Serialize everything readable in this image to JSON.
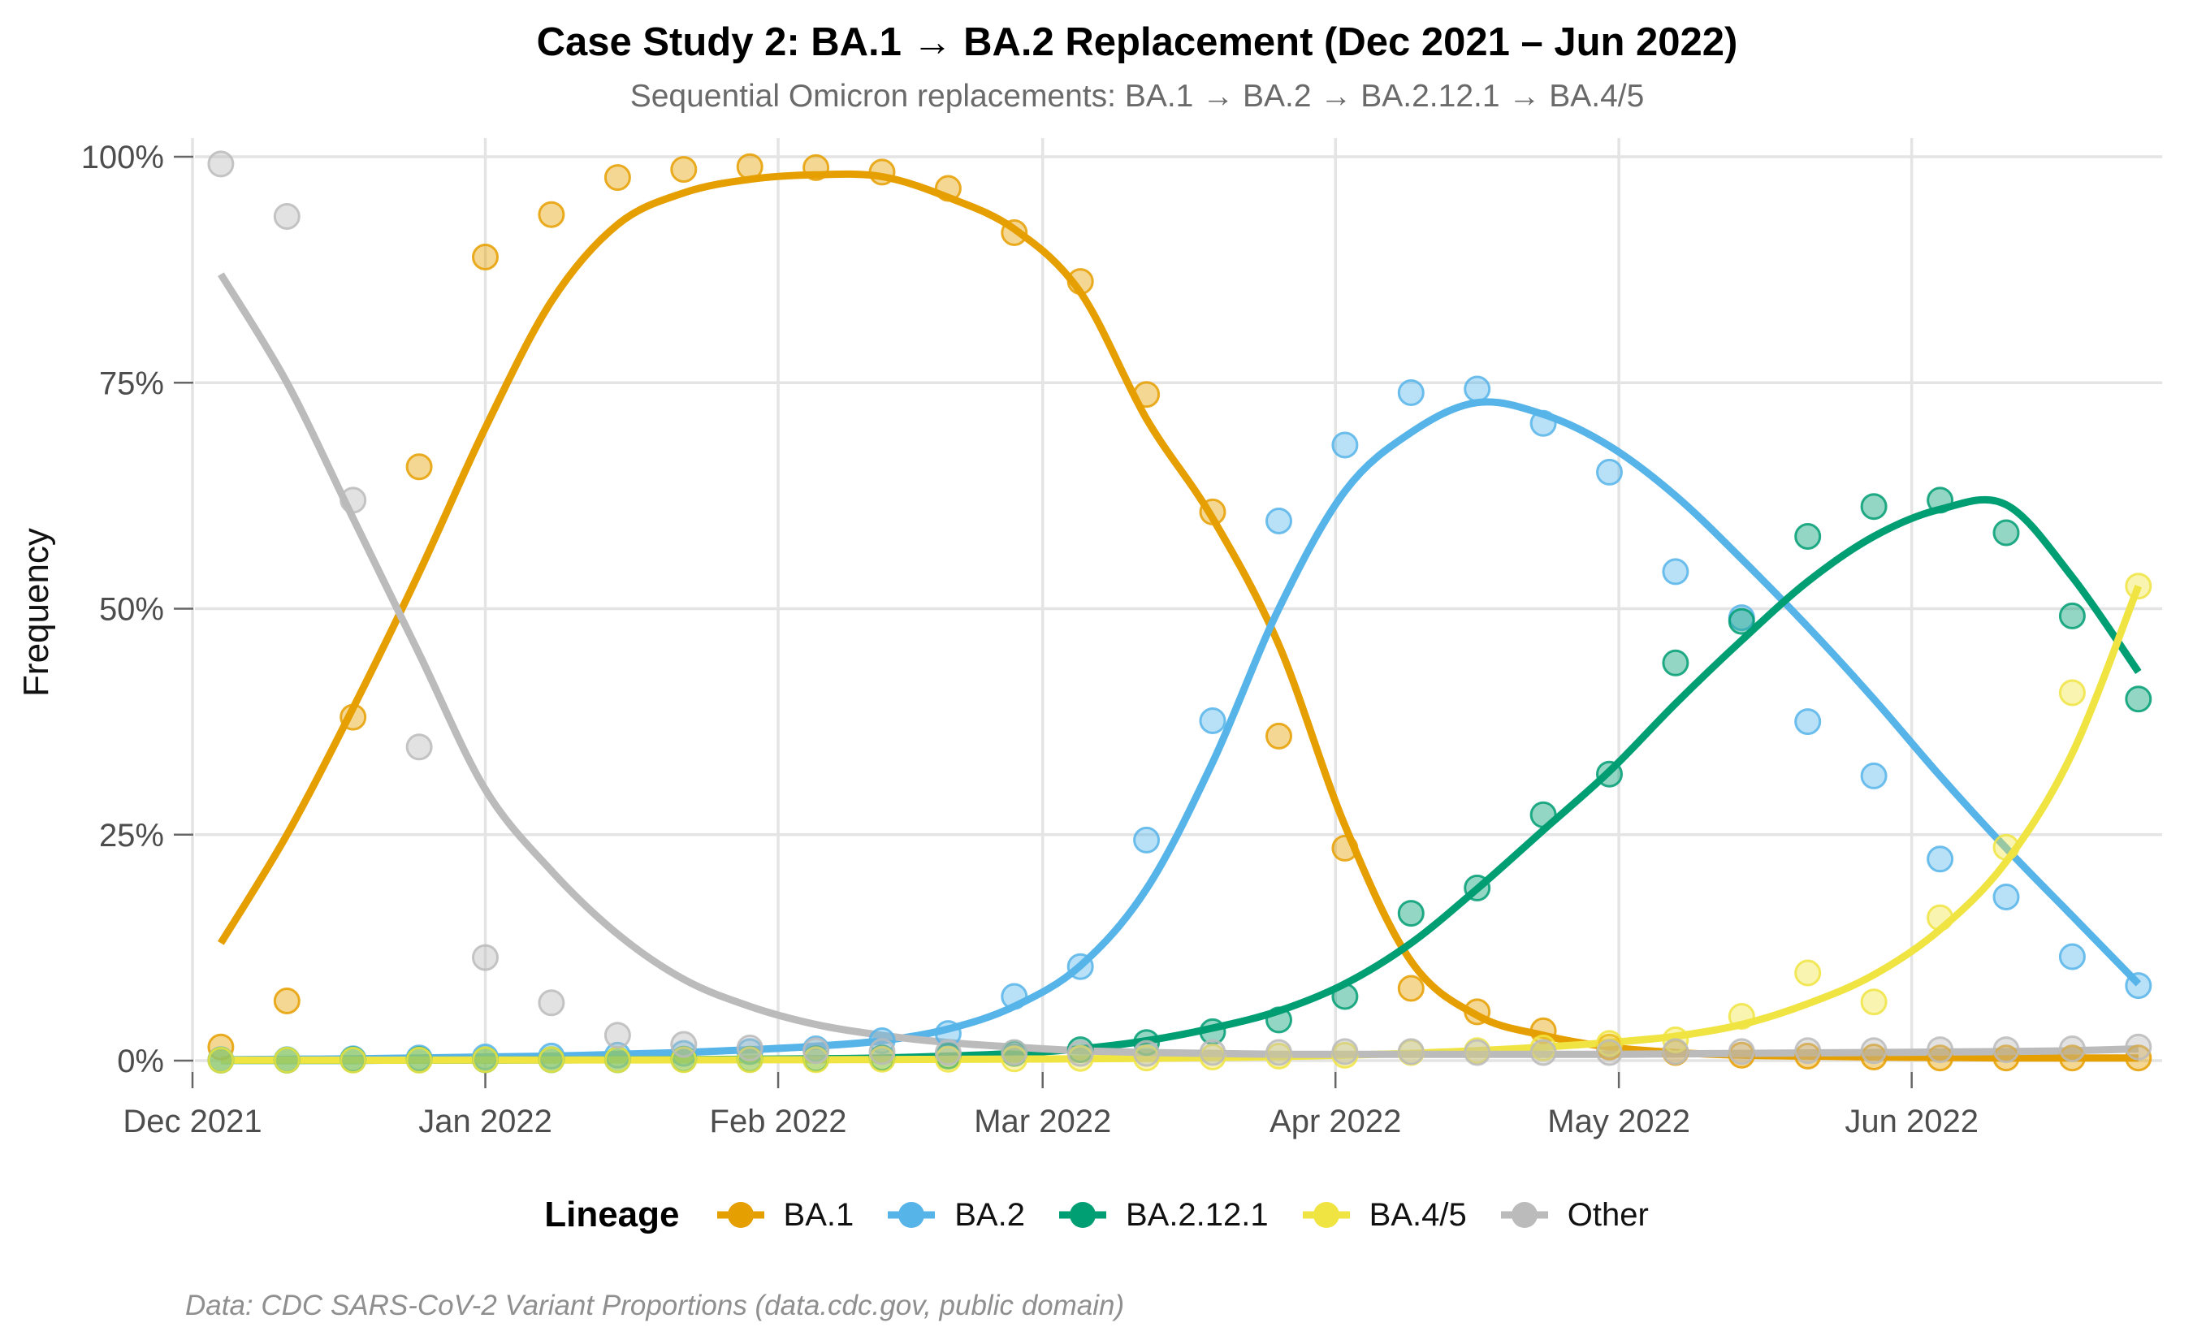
{
  "title": "Case Study 2: BA.1 → BA.2 Replacement (Dec 2021 – Jun 2022)",
  "subtitle": "Sequential Omicron replacements: BA.1 → BA.2 → BA.2.12.1 → BA.4/5",
  "caption": "Data: CDC SARS-CoV-2 Variant Proportions (data.cdc.gov, public domain)",
  "legend": {
    "title": "Lineage",
    "position": "bottom"
  },
  "axes": {
    "y_title": "Frequency",
    "y_tick_labels": [
      "0%",
      "25%",
      "50%",
      "75%",
      "100%"
    ],
    "x_tick_labels": [
      "Dec 2021",
      "Jan 2022",
      "Feb 2022",
      "Mar 2022",
      "Apr 2022",
      "May 2022",
      "Jun 2022"
    ]
  },
  "chart_data": {
    "type": "scatter",
    "subtype": "points-with-loess-trend-lines",
    "title": "Case Study 2: BA.1 → BA.2 Replacement (Dec 2021 – Jun 2022)",
    "xlabel": "",
    "ylabel": "Frequency",
    "y_unit": "percent",
    "ylim": [
      0,
      100
    ],
    "grid": true,
    "legend_position": "bottom",
    "y_ticks": [
      0,
      25,
      50,
      75,
      100
    ],
    "y_tick_labels": [
      "0%",
      "25%",
      "50%",
      "75%",
      "100%"
    ],
    "x_ticks": [
      {
        "label": "Dec 2021",
        "day": 0
      },
      {
        "label": "Jan 2022",
        "day": 31
      },
      {
        "label": "Feb 2022",
        "day": 62
      },
      {
        "label": "Mar 2022",
        "day": 90
      },
      {
        "label": "Apr 2022",
        "day": 121
      },
      {
        "label": "May 2022",
        "day": 151
      },
      {
        "label": "Jun 2022",
        "day": 182
      }
    ],
    "weeks": [
      "2021-12-04",
      "2021-12-11",
      "2021-12-18",
      "2021-12-25",
      "2022-01-01",
      "2022-01-08",
      "2022-01-15",
      "2022-01-22",
      "2022-01-29",
      "2022-02-05",
      "2022-02-12",
      "2022-02-19",
      "2022-02-26",
      "2022-03-05",
      "2022-03-12",
      "2022-03-19",
      "2022-03-26",
      "2022-04-02",
      "2022-04-09",
      "2022-04-16",
      "2022-04-23",
      "2022-04-30",
      "2022-05-07",
      "2022-05-14",
      "2022-05-21",
      "2022-05-28",
      "2022-06-04",
      "2022-06-11",
      "2022-06-18",
      "2022-06-25"
    ],
    "week_day_offsets": [
      3,
      10,
      17,
      24,
      31,
      38,
      45,
      52,
      59,
      66,
      73,
      80,
      87,
      94,
      101,
      108,
      115,
      122,
      129,
      136,
      143,
      150,
      157,
      164,
      171,
      178,
      185,
      192,
      199,
      206
    ],
    "series": [
      {
        "name": "BA.1",
        "color": "#E69F00",
        "points": [
          1.5,
          6.6,
          38,
          65.7,
          88.9,
          93.6,
          97.7,
          98.6,
          98.9,
          98.8,
          98.3,
          96.5,
          91.6,
          86.2,
          73.7,
          60.7,
          35.9,
          23.5,
          8,
          5.4,
          3.3,
          1.5,
          0.9,
          0.6,
          0.5,
          0.4,
          0.3,
          0.3,
          0.3,
          0.3
        ],
        "trend": [
          13,
          25,
          39,
          54,
          70,
          84,
          92.5,
          96,
          97.5,
          98,
          97.8,
          95.5,
          92,
          85,
          71,
          60,
          46,
          26,
          11,
          5,
          2.8,
          1.5,
          0.9,
          0.6,
          0.5,
          0.4,
          0.35,
          0.3,
          0.3,
          0.3
        ]
      },
      {
        "name": "BA.2",
        "color": "#56B4E9",
        "points": [
          0.1,
          0.1,
          0.2,
          0.3,
          0.4,
          0.5,
          0.6,
          0.8,
          1,
          1.3,
          2.2,
          3,
          7.1,
          10.4,
          24.4,
          37.6,
          59.7,
          68.1,
          73.9,
          74.3,
          70.5,
          65.1,
          54.1,
          49,
          37.5,
          31.5,
          22.3,
          18.1,
          11.5,
          8.3
        ],
        "trend": [
          0.1,
          0.15,
          0.2,
          0.3,
          0.4,
          0.5,
          0.7,
          0.9,
          1.2,
          1.6,
          2.2,
          3.5,
          6,
          10.5,
          19,
          33,
          50,
          63,
          69.5,
          72.8,
          71.5,
          68,
          62.5,
          55.5,
          48,
          40,
          31.5,
          23.5,
          16,
          8.5
        ]
      },
      {
        "name": "BA.2.12.1",
        "color": "#009E73",
        "points": [
          0.05,
          0.05,
          0.1,
          0.1,
          0.1,
          0.1,
          0.1,
          0.15,
          0.15,
          0.2,
          0.3,
          0.5,
          0.8,
          1.2,
          2,
          3.2,
          4.5,
          7.1,
          16.3,
          19.1,
          27.2,
          31.7,
          44,
          48.6,
          58,
          61.3,
          62,
          58.4,
          49.2,
          40
        ],
        "trend": [
          0.02,
          0.02,
          0.03,
          0.05,
          0.05,
          0.08,
          0.1,
          0.12,
          0.15,
          0.2,
          0.3,
          0.5,
          0.8,
          1.3,
          2.2,
          3.6,
          5.5,
          8.5,
          13,
          19,
          25.5,
          32,
          39.5,
          46.5,
          53,
          58,
          61,
          61.5,
          53.5,
          43
        ]
      },
      {
        "name": "BA.4/5",
        "color": "#F0E442",
        "points": [
          0.05,
          0.05,
          0.05,
          0.05,
          0.1,
          0.1,
          0.1,
          0.1,
          0.1,
          0.1,
          0.15,
          0.15,
          0.2,
          0.25,
          0.3,
          0.4,
          0.5,
          0.6,
          0.9,
          1.1,
          1.4,
          1.9,
          2.3,
          4.9,
          9.7,
          6.5,
          15.8,
          23.6,
          40.7,
          52.5
        ],
        "trend": [
          0.05,
          0.05,
          0.05,
          0.05,
          0.06,
          0.07,
          0.08,
          0.09,
          0.1,
          0.1,
          0.12,
          0.14,
          0.17,
          0.2,
          0.25,
          0.35,
          0.45,
          0.6,
          0.8,
          1.1,
          1.5,
          2,
          2.7,
          4,
          6.3,
          9.5,
          14.5,
          22,
          34,
          52.5
        ]
      },
      {
        "name": "Other",
        "color": "#BBBBBB",
        "points": [
          99.2,
          93.4,
          62,
          34.7,
          11.4,
          6.4,
          2.8,
          1.8,
          1.4,
          1.1,
          1,
          0.9,
          0.9,
          0.8,
          0.8,
          0.9,
          0.9,
          1,
          1,
          0.9,
          0.9,
          0.9,
          1,
          1,
          1.1,
          1.1,
          1.2,
          1.2,
          1.3,
          1.5
        ],
        "trend": [
          87,
          75,
          60,
          45,
          30,
          21,
          14,
          9,
          6,
          4,
          2.8,
          2,
          1.5,
          1.1,
          0.9,
          0.8,
          0.7,
          0.7,
          0.7,
          0.7,
          0.7,
          0.7,
          0.75,
          0.8,
          0.85,
          0.9,
          0.95,
          1,
          1.1,
          1.3
        ]
      }
    ]
  },
  "style": {
    "grid_color": "#E4E4E4",
    "tick_text_color": "#4d4d4d",
    "tick_mark_color": "#666666",
    "point_radius": 15,
    "line_width": 9
  }
}
